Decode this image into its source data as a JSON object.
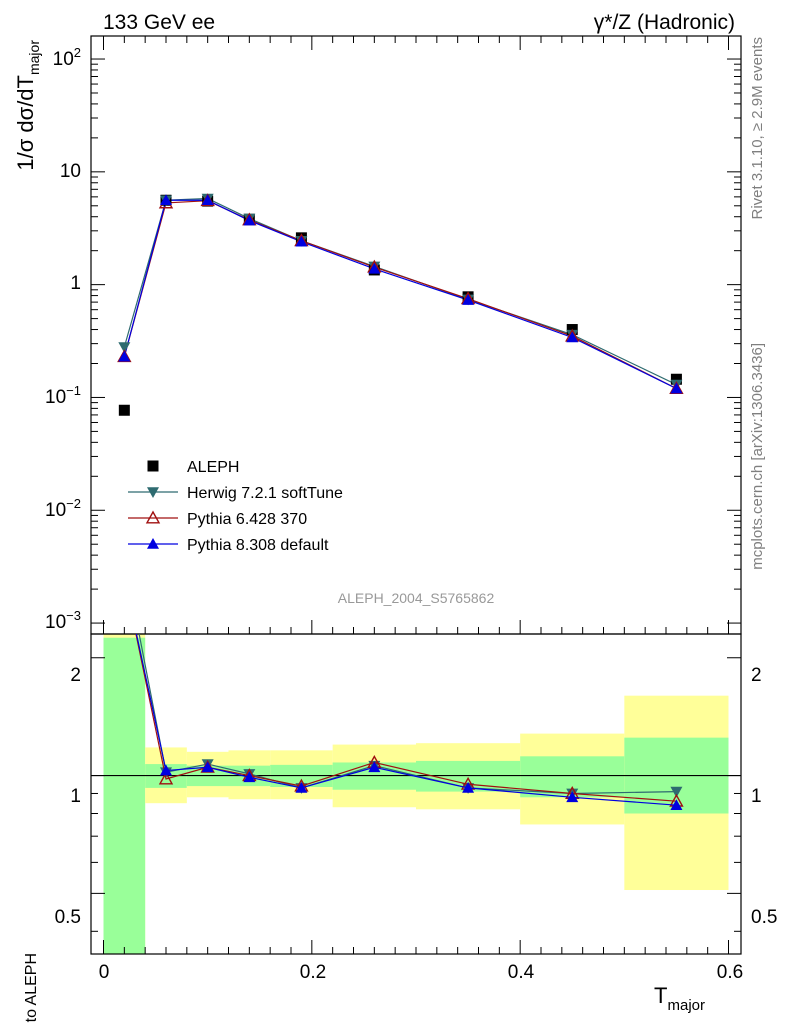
{
  "header": {
    "left_title": "133 GeV ee",
    "right_title": "γ*/Z (Hadronic)"
  },
  "side_text": {
    "rivet": "Rivet 3.1.10, ≥ 2.9M events",
    "mcplots": "mcplots.cern.ch [arXiv:1306.3436]"
  },
  "watermark": "ALEPH_2004_S5765862",
  "axis": {
    "ylabel_main": "1/σ  dσ/dT_major",
    "ylabel_ratio": "Ratio to ALEPH",
    "xlabel": "T_major",
    "x_ticks": [
      "0",
      "0.2",
      "0.4",
      "0.6"
    ],
    "y_ticks_main": [
      "10^-3",
      "10^-2",
      "10^-1",
      "1",
      "10",
      "10^2"
    ],
    "y_ticks_ratio": [
      "0.5",
      "1",
      "2"
    ]
  },
  "legend": [
    {
      "label": "ALEPH",
      "color": "#000000",
      "marker": "square"
    },
    {
      "label": "Herwig 7.2.1 softTune",
      "color": "#2e6b70",
      "marker": "triangle-down"
    },
    {
      "label": "Pythia 6.428 370",
      "color": "#a01010",
      "marker": "triangle-open"
    },
    {
      "label": "Pythia 8.308 default",
      "color": "#0000e0",
      "marker": "triangle-up"
    }
  ],
  "chart_data": {
    "type": "line",
    "x_scale": "linear",
    "y_scale_main": "log",
    "xlim": [
      -0.012,
      0.612
    ],
    "ylim_main": [
      0.0008,
      160
    ],
    "ylim_ratio": [
      0.35,
      2.3
    ],
    "bins": [
      [
        0.0,
        0.04
      ],
      [
        0.04,
        0.08
      ],
      [
        0.08,
        0.12
      ],
      [
        0.12,
        0.16
      ],
      [
        0.16,
        0.22
      ],
      [
        0.22,
        0.3
      ],
      [
        0.3,
        0.4
      ],
      [
        0.4,
        0.5
      ],
      [
        0.5,
        0.6
      ]
    ],
    "x": [
      0.02,
      0.06,
      0.1,
      0.14,
      0.19,
      0.26,
      0.35,
      0.45,
      0.55
    ],
    "data": {
      "name": "ALEPH",
      "y": [
        0.077,
        5.6,
        5.5,
        3.8,
        2.6,
        1.35,
        0.78,
        0.4,
        0.145
      ],
      "ratio_band_inner": [
        [
          0.35,
          2.25
        ],
        [
          0.93,
          1.07
        ],
        [
          0.94,
          1.06
        ],
        [
          0.94,
          1.06
        ],
        [
          0.935,
          1.065
        ],
        [
          0.92,
          1.08
        ],
        [
          0.91,
          1.09
        ],
        [
          0.88,
          1.12
        ],
        [
          0.8,
          1.25
        ]
      ],
      "ratio_band_outer": [
        [
          0.35,
          2.3
        ],
        [
          0.85,
          1.18
        ],
        [
          0.88,
          1.15
        ],
        [
          0.87,
          1.16
        ],
        [
          0.87,
          1.16
        ],
        [
          0.83,
          1.2
        ],
        [
          0.82,
          1.21
        ],
        [
          0.75,
          1.28
        ],
        [
          0.51,
          1.6
        ]
      ]
    },
    "series": [
      {
        "name": "Herwig 7.2.1 softTune",
        "color": "#2e6b70",
        "marker": "triangle-down",
        "y": [
          0.28,
          5.6,
          5.8,
          3.85,
          2.45,
          1.45,
          0.74,
          0.36,
          0.13
        ],
        "ratio": [
          3.6,
          1.02,
          1.07,
          1.01,
          0.93,
          1.06,
          0.93,
          0.9,
          0.91
        ]
      },
      {
        "name": "Pythia 6.428 370",
        "color": "#a01010",
        "marker": "triangle-open",
        "y": [
          0.23,
          5.3,
          5.55,
          3.75,
          2.45,
          1.43,
          0.75,
          0.35,
          0.12
        ],
        "ratio": [
          3.2,
          0.98,
          1.05,
          1.0,
          0.94,
          1.08,
          0.95,
          0.9,
          0.86
        ]
      },
      {
        "name": "Pythia 8.308 default",
        "color": "#0000e0",
        "marker": "triangle-up",
        "y": [
          0.23,
          5.6,
          5.6,
          3.7,
          2.4,
          1.38,
          0.73,
          0.34,
          0.12
        ],
        "ratio": [
          3.2,
          1.03,
          1.05,
          0.99,
          0.93,
          1.05,
          0.93,
          0.88,
          0.84
        ]
      }
    ]
  }
}
